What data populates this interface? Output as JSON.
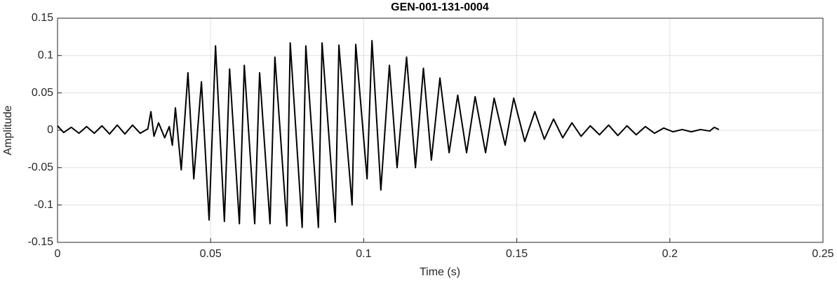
{
  "chart_data": {
    "type": "line",
    "title": "GEN-001-131-0004",
    "xlabel": "Time (s)",
    "ylabel": "Amplitude",
    "x": [
      0,
      0.002,
      0.0045,
      0.007,
      0.0095,
      0.012,
      0.0145,
      0.017,
      0.0195,
      0.022,
      0.0245,
      0.027,
      0.0295,
      0.0305,
      0.0315,
      0.033,
      0.035,
      0.0365,
      0.0375,
      0.0385,
      0.0404,
      0.0426,
      0.0445,
      0.047,
      0.0495,
      0.0516,
      0.0545,
      0.0562,
      0.0594,
      0.061,
      0.0644,
      0.066,
      0.0694,
      0.071,
      0.0749,
      0.076,
      0.0799,
      0.0811,
      0.0852,
      0.0864,
      0.0907,
      0.0919,
      0.0962,
      0.0974,
      0.1011,
      0.1027,
      0.1056,
      0.1084,
      0.1109,
      0.114,
      0.1169,
      0.1195,
      0.1221,
      0.1249,
      0.1279,
      0.1307,
      0.1336,
      0.1364,
      0.1398,
      0.1426,
      0.1462,
      0.149,
      0.1526,
      0.1559,
      0.159,
      0.162,
      0.165,
      0.168,
      0.171,
      0.174,
      0.177,
      0.18,
      0.183,
      0.186,
      0.189,
      0.192,
      0.195,
      0.198,
      0.201,
      0.204,
      0.207,
      0.21,
      0.213,
      0.2145,
      0.216
    ],
    "series": [
      {
        "name": "Amplitude",
        "color": "#000000",
        "values": [
          0.006,
          -0.003,
          0.004,
          -0.004,
          0.005,
          -0.004,
          0.006,
          -0.005,
          0.007,
          -0.005,
          0.007,
          -0.004,
          0.002,
          0.025,
          -0.008,
          0.01,
          -0.01,
          0.005,
          -0.02,
          0.03,
          -0.053,
          0.077,
          -0.065,
          0.065,
          -0.12,
          0.113,
          -0.122,
          0.082,
          -0.125,
          0.087,
          -0.125,
          0.077,
          -0.125,
          0.098,
          -0.128,
          0.117,
          -0.13,
          0.113,
          -0.13,
          0.117,
          -0.123,
          0.114,
          -0.1,
          0.115,
          -0.065,
          0.12,
          -0.08,
          0.087,
          -0.05,
          0.098,
          -0.05,
          0.083,
          -0.04,
          0.07,
          -0.03,
          0.047,
          -0.03,
          0.045,
          -0.03,
          0.043,
          -0.02,
          0.043,
          -0.015,
          0.025,
          -0.012,
          0.015,
          -0.01,
          0.01,
          -0.008,
          0.006,
          -0.006,
          0.007,
          -0.007,
          0.006,
          -0.006,
          0.005,
          -0.004,
          0.003,
          -0.002,
          0.001,
          -0.002,
          0.001,
          -0.001,
          0.004,
          0.001
        ]
      }
    ],
    "xlim": [
      0,
      0.25
    ],
    "ylim": [
      -0.15,
      0.15
    ],
    "xticks": [
      0,
      0.05,
      0.1,
      0.15,
      0.2,
      0.25
    ],
    "yticks": [
      -0.15,
      -0.1,
      -0.05,
      0,
      0.05,
      0.1,
      0.15
    ],
    "grid": true
  }
}
